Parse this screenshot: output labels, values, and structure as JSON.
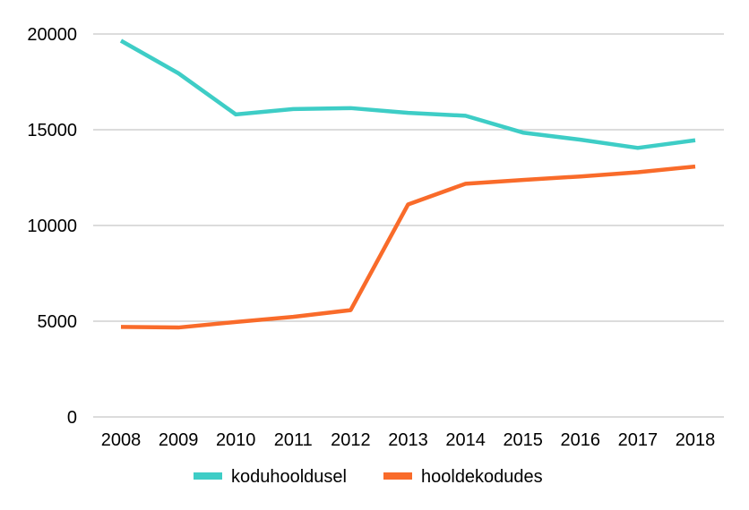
{
  "chart_data": {
    "type": "line",
    "x": [
      "2008",
      "2009",
      "2010",
      "2011",
      "2012",
      "2013",
      "2014",
      "2015",
      "2016",
      "2017",
      "2018"
    ],
    "series": [
      {
        "name": "koduhooldusel",
        "color": "#3ECDC6",
        "values": [
          19650,
          17950,
          15800,
          16080,
          16130,
          15880,
          15730,
          14850,
          14480,
          14050,
          14450
        ]
      },
      {
        "name": "hooldekodudes",
        "color": "#F96B2A",
        "values": [
          4700,
          4670,
          4960,
          5230,
          5580,
          11100,
          12180,
          12380,
          12560,
          12780,
          13080
        ]
      }
    ],
    "ylim": [
      0,
      20000
    ],
    "yticks": [
      "0",
      "5000",
      "10000",
      "15000",
      "20000"
    ],
    "grid": true,
    "gridline_color": "#C8C8C8",
    "legend_position": "bottom",
    "title": "",
    "xlabel": "",
    "ylabel": ""
  }
}
